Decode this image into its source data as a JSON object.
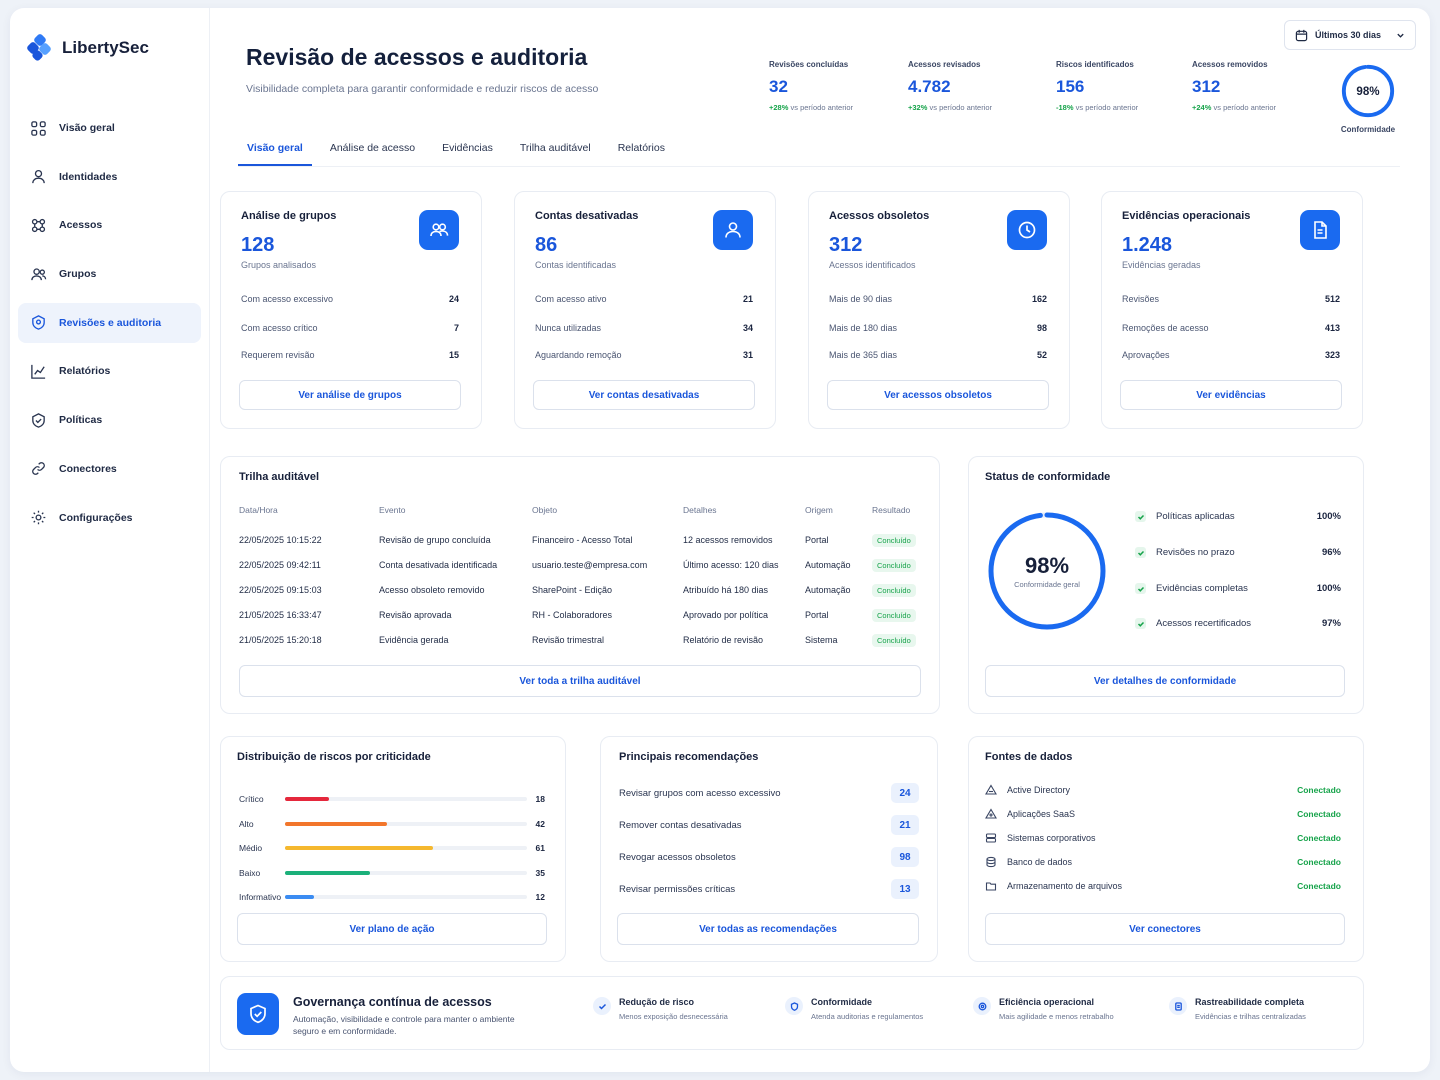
{
  "brand": {
    "name": "LibertySec"
  },
  "nav": [
    {
      "label": "Visão geral",
      "icon": "grid-icon"
    },
    {
      "label": "Identidades",
      "icon": "user-icon"
    },
    {
      "label": "Acessos",
      "icon": "network-icon"
    },
    {
      "label": "Grupos",
      "icon": "users-icon"
    },
    {
      "label": "Revisões e auditoria",
      "icon": "review-icon",
      "active": true
    },
    {
      "label": "Relatórios",
      "icon": "chart-icon"
    },
    {
      "label": "Políticas",
      "icon": "shield-icon"
    },
    {
      "label": "Conectores",
      "icon": "link-icon"
    },
    {
      "label": "Configurações",
      "icon": "gear-icon"
    }
  ],
  "header": {
    "title": "Revisão de acessos e auditoria",
    "subtitle": "Visibilidade completa para garantir conformidade e reduzir riscos de acesso",
    "date_range": "Últimos 30 dias"
  },
  "kpis": [
    {
      "label": "Revisões concluídas",
      "value": "32",
      "delta": "+28%",
      "delta_text": "vs período anterior"
    },
    {
      "label": "Acessos revisados",
      "value": "4.782",
      "delta": "+32%",
      "delta_text": "vs período anterior"
    },
    {
      "label": "Riscos identificados",
      "value": "156",
      "delta": "-18%",
      "delta_text": "vs período anterior"
    },
    {
      "label": "Acessos removidos",
      "value": "312",
      "delta": "+24%",
      "delta_text": "vs período anterior"
    }
  ],
  "conformity_ring": {
    "value": "98%",
    "fraction": 0.98,
    "label": "Conformidade"
  },
  "tabs": [
    "Visão geral",
    "Análise de acesso",
    "Evidências",
    "Trilha auditável",
    "Relatórios"
  ],
  "stat_cards": [
    {
      "title": "Análise de grupos",
      "value": "128",
      "sub": "Grupos analisados",
      "icon": "groups-icon",
      "rows": [
        {
          "label": "Com acesso excessivo",
          "value": "24"
        },
        {
          "label": "Com acesso crítico",
          "value": "7"
        },
        {
          "label": "Requerem revisão",
          "value": "15"
        }
      ],
      "button": "Ver análise de grupos"
    },
    {
      "title": "Contas desativadas",
      "value": "86",
      "sub": "Contas identificadas",
      "icon": "user-icon",
      "rows": [
        {
          "label": "Com acesso ativo",
          "value": "21"
        },
        {
          "label": "Nunca utilizadas",
          "value": "34"
        },
        {
          "label": "Aguardando remoção",
          "value": "31"
        }
      ],
      "button": "Ver contas desativadas"
    },
    {
      "title": "Acessos obsoletos",
      "value": "312",
      "sub": "Acessos identificados",
      "icon": "clock-icon",
      "rows": [
        {
          "label": "Mais de 90 dias",
          "value": "162"
        },
        {
          "label": "Mais de 180 dias",
          "value": "98"
        },
        {
          "label": "Mais de 365 dias",
          "value": "52"
        }
      ],
      "button": "Ver acessos obsoletos"
    },
    {
      "title": "Evidências operacionais",
      "value": "1.248",
      "sub": "Evidências geradas",
      "icon": "document-icon",
      "rows": [
        {
          "label": "Revisões",
          "value": "512"
        },
        {
          "label": "Remoções de acesso",
          "value": "413"
        },
        {
          "label": "Aprovações",
          "value": "323"
        }
      ],
      "button": "Ver evidências"
    }
  ],
  "audit": {
    "title": "Trilha auditável",
    "headers": [
      "Data/Hora",
      "Evento",
      "Objeto",
      "Detalhes",
      "Origem",
      "Resultado"
    ],
    "rows": [
      [
        "22/05/2025 10:15:22",
        "Revisão de grupo concluída",
        "Financeiro - Acesso Total",
        "12 acessos removidos",
        "Portal",
        "Concluído"
      ],
      [
        "22/05/2025 09:42:11",
        "Conta desativada identificada",
        "usuario.teste@empresa.com",
        "Último acesso: 120 dias",
        "Automação",
        "Concluído"
      ],
      [
        "22/05/2025 09:15:03",
        "Acesso obsoleto removido",
        "SharePoint - Edição",
        "Atribuído há 180 dias",
        "Automação",
        "Concluído"
      ],
      [
        "21/05/2025 16:33:47",
        "Revisão aprovada",
        "RH - Colaboradores",
        "Aprovado por política",
        "Portal",
        "Concluído"
      ],
      [
        "21/05/2025 15:20:18",
        "Evidência gerada",
        "Revisão trimestral",
        "Relatório de revisão",
        "Sistema",
        "Concluído"
      ]
    ],
    "button": "Ver toda a trilha auditável"
  },
  "compliance": {
    "title": "Status de conformidade",
    "value": "98%",
    "fraction": 0.98,
    "label": "Conformidade geral",
    "items": [
      {
        "label": "Políticas aplicadas",
        "value": "100%"
      },
      {
        "label": "Revisões no prazo",
        "value": "96%"
      },
      {
        "label": "Evidências completas",
        "value": "100%"
      },
      {
        "label": "Acessos recertificados",
        "value": "97%"
      }
    ],
    "button": "Ver detalhes de conformidade"
  },
  "risks": {
    "title": "Distribuição de riscos por criticidade",
    "max": 100,
    "items": [
      {
        "label": "Crítico",
        "value": 18,
        "color": "#e5283c"
      },
      {
        "label": "Alto",
        "value": 42,
        "color": "#f2762b"
      },
      {
        "label": "Médio",
        "value": 61,
        "color": "#f5b82e"
      },
      {
        "label": "Baixo",
        "value": 35,
        "color": "#1bb07a"
      },
      {
        "label": "Informativo",
        "value": 12,
        "color": "#3b8cf2"
      }
    ],
    "button": "Ver plano de ação"
  },
  "recommendations": {
    "title": "Principais recomendações",
    "items": [
      {
        "label": "Revisar grupos com acesso excessivo",
        "value": "24"
      },
      {
        "label": "Remover contas desativadas",
        "value": "21"
      },
      {
        "label": "Revogar acessos obsoletos",
        "value": "98"
      },
      {
        "label": "Revisar permissões críticas",
        "value": "13"
      }
    ],
    "button": "Ver todas as recomendações"
  },
  "sources": {
    "title": "Fontes de dados",
    "items": [
      {
        "label": "Active Directory",
        "status": "Conectado",
        "icon": "directory-icon"
      },
      {
        "label": "Aplicações SaaS",
        "status": "Conectado",
        "icon": "cloud-icon"
      },
      {
        "label": "Sistemas corporativos",
        "status": "Conectado",
        "icon": "server-icon"
      },
      {
        "label": "Banco de dados",
        "status": "Conectado",
        "icon": "database-icon"
      },
      {
        "label": "Armazenamento de arquivos",
        "status": "Conectado",
        "icon": "folder-icon"
      }
    ],
    "button": "Ver conectores"
  },
  "banner": {
    "title": "Governança contínua de acessos",
    "subtitle": "Automação, visibilidade e controle para manter o ambiente seguro e em conformidade.",
    "items": [
      {
        "title": "Redução de risco",
        "sub": "Menos exposição desnecessária"
      },
      {
        "title": "Conformidade",
        "sub": "Atenda auditorias e regulamentos"
      },
      {
        "title": "Eficiência operacional",
        "sub": "Mais agilidade e menos retrabalho"
      },
      {
        "title": "Rastreabilidade completa",
        "sub": "Evidências e trilhas centralizadas"
      }
    ]
  }
}
